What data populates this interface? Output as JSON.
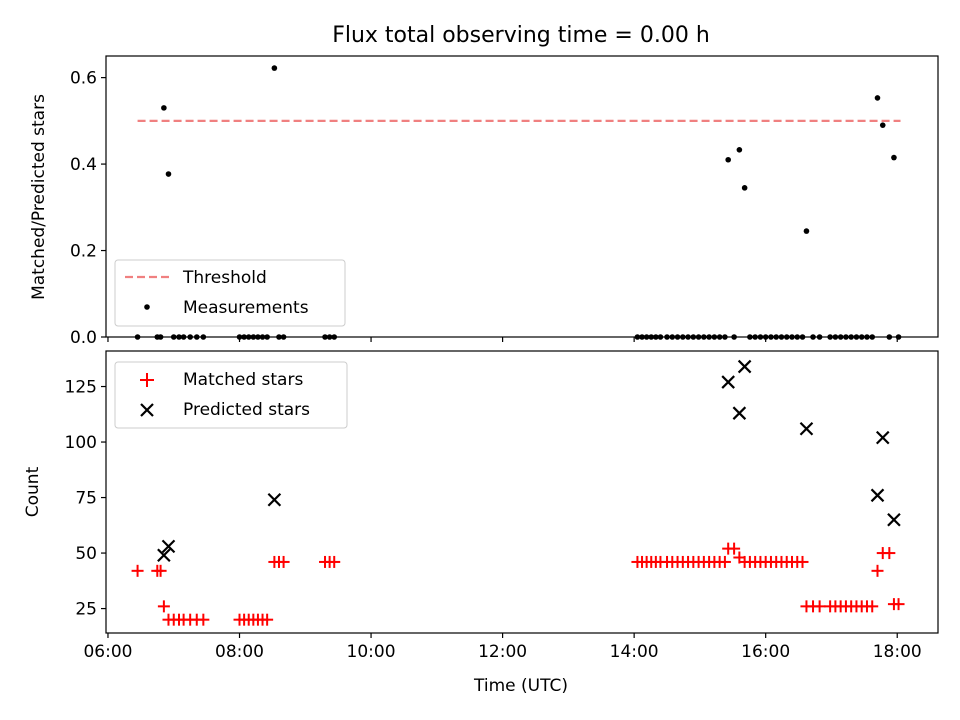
{
  "chart_data": [
    {
      "type": "scatter",
      "title": "Flux total observing time = 0.00 h",
      "xlabel": "",
      "ylabel": "Matched/Predicted stars",
      "ylim": [
        0,
        0.65
      ],
      "xlim": [
        5.97,
        18.62
      ],
      "x_unit": "hours UTC",
      "yticks": [
        0.0,
        0.2,
        0.4,
        0.6
      ],
      "ytick_labels": [
        "0.0",
        "0.2",
        "0.4",
        "0.6"
      ],
      "grid": false,
      "legend_position": "lower-left",
      "series": [
        {
          "name": "Threshold",
          "style": "dashed-line",
          "color": "#f08080",
          "x": [
            6.45,
            18.05
          ],
          "y": [
            0.5,
            0.5
          ]
        },
        {
          "name": "Measurements",
          "style": "dot",
          "color": "#000000",
          "x": [
            6.45,
            6.75,
            6.8,
            6.85,
            6.92,
            7.0,
            7.08,
            7.15,
            7.25,
            7.35,
            7.45,
            8.0,
            8.07,
            8.14,
            8.21,
            8.28,
            8.35,
            8.42,
            8.53,
            8.6,
            8.67,
            9.3,
            9.37,
            9.44,
            14.05,
            14.12,
            14.19,
            14.26,
            14.33,
            14.4,
            14.5,
            14.58,
            14.66,
            14.74,
            14.82,
            14.9,
            14.98,
            15.06,
            15.14,
            15.22,
            15.3,
            15.38,
            15.43,
            15.52,
            15.6,
            15.68,
            15.76,
            15.84,
            15.92,
            16.0,
            16.08,
            16.16,
            16.24,
            16.32,
            16.4,
            16.48,
            16.56,
            16.62,
            16.72,
            16.82,
            16.98,
            17.06,
            17.14,
            17.22,
            17.3,
            17.38,
            17.46,
            17.54,
            17.62,
            17.7,
            17.78,
            17.88,
            17.95,
            18.02
          ],
          "y": [
            0.0,
            0.0,
            0.0,
            0.53,
            0.377,
            0.0,
            0.0,
            0.0,
            0.0,
            0.0,
            0.0,
            0.0,
            0.0,
            0.0,
            0.0,
            0.0,
            0.0,
            0.0,
            0.622,
            0.0,
            0.0,
            0.0,
            0.0,
            0.0,
            0.0,
            0.0,
            0.0,
            0.0,
            0.0,
            0.0,
            0.0,
            0.0,
            0.0,
            0.0,
            0.0,
            0.0,
            0.0,
            0.0,
            0.0,
            0.0,
            0.0,
            0.0,
            0.41,
            0.0,
            0.433,
            0.345,
            0.0,
            0.0,
            0.0,
            0.0,
            0.0,
            0.0,
            0.0,
            0.0,
            0.0,
            0.0,
            0.0,
            0.245,
            0.0,
            0.0,
            0.0,
            0.0,
            0.0,
            0.0,
            0.0,
            0.0,
            0.0,
            0.0,
            0.0,
            0.553,
            0.49,
            0.0,
            0.415,
            0.0
          ]
        }
      ]
    },
    {
      "type": "scatter",
      "title": "",
      "xlabel": "Time (UTC)",
      "ylabel": "Count",
      "ylim": [
        14,
        141
      ],
      "xlim": [
        5.97,
        18.62
      ],
      "x_unit": "hours UTC",
      "xticks": [
        6,
        8,
        10,
        12,
        14,
        16,
        18
      ],
      "xtick_labels": [
        "06:00",
        "08:00",
        "10:00",
        "12:00",
        "14:00",
        "16:00",
        "18:00"
      ],
      "yticks": [
        25,
        50,
        75,
        100,
        125
      ],
      "ytick_labels": [
        "25",
        "50",
        "75",
        "100",
        "125"
      ],
      "grid": false,
      "legend_position": "upper-left",
      "series": [
        {
          "name": "Matched stars",
          "style": "plus",
          "color": "#ff0000",
          "x": [
            6.45,
            6.75,
            6.8,
            6.85,
            6.92,
            7.0,
            7.08,
            7.15,
            7.25,
            7.35,
            7.45,
            8.0,
            8.07,
            8.14,
            8.21,
            8.28,
            8.35,
            8.42,
            8.53,
            8.6,
            8.67,
            9.3,
            9.37,
            9.44,
            14.05,
            14.12,
            14.19,
            14.26,
            14.33,
            14.4,
            14.5,
            14.58,
            14.66,
            14.74,
            14.82,
            14.9,
            14.98,
            15.06,
            15.14,
            15.22,
            15.3,
            15.38,
            15.43,
            15.52,
            15.6,
            15.68,
            15.76,
            15.84,
            15.92,
            16.0,
            16.08,
            16.16,
            16.24,
            16.32,
            16.4,
            16.48,
            16.56,
            16.62,
            16.72,
            16.82,
            16.98,
            17.06,
            17.14,
            17.22,
            17.3,
            17.38,
            17.46,
            17.54,
            17.62,
            17.7,
            17.78,
            17.88,
            17.95,
            18.02
          ],
          "y": [
            42,
            42,
            42,
            26,
            20,
            20,
            20,
            20,
            20,
            20,
            20,
            20,
            20,
            20,
            20,
            20,
            20,
            20,
            46,
            46,
            46,
            46,
            46,
            46,
            46,
            46,
            46,
            46,
            46,
            46,
            46,
            46,
            46,
            46,
            46,
            46,
            46,
            46,
            46,
            46,
            46,
            46,
            52,
            52,
            48,
            46,
            46,
            46,
            46,
            46,
            46,
            46,
            46,
            46,
            46,
            46,
            46,
            26,
            26,
            26,
            26,
            26,
            26,
            26,
            26,
            26,
            26,
            26,
            26,
            42,
            50,
            50,
            27,
            27
          ]
        },
        {
          "name": "Predicted stars",
          "style": "x",
          "color": "#000000",
          "x": [
            6.85,
            6.92,
            8.53,
            15.43,
            15.6,
            15.68,
            16.62,
            17.7,
            17.78,
            17.95
          ],
          "y": [
            49,
            53,
            74,
            127,
            113,
            134,
            106,
            76,
            102,
            65
          ]
        }
      ]
    }
  ]
}
